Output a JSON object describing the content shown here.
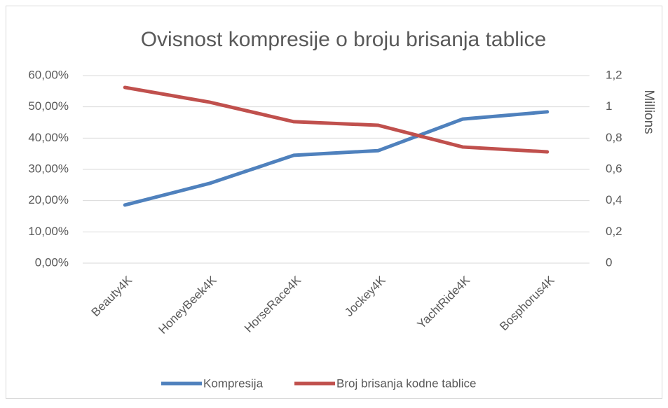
{
  "chart_data": {
    "type": "line",
    "title": "Ovisnost kompresije o broju brisanja tablice",
    "categories": [
      "Beauty4K",
      "HoneyBeek4K",
      "HorseRace4K",
      "Jockey4K",
      "YachtRide4K",
      "Bosphorus4K"
    ],
    "series": [
      {
        "name": "Kompresija",
        "color": "#4f81bd",
        "values": [
          18.6,
          25.5,
          34.5,
          36.0,
          46.1,
          48.4
        ]
      },
      {
        "name": "Broj brisanja kodne tablice",
        "color": "#c0504d",
        "axis": "y2",
        "values": [
          1.124,
          1.03,
          0.905,
          0.882,
          0.743,
          0.712
        ]
      }
    ],
    "ylim": [
      0,
      60
    ],
    "yticks": [
      {
        "value": 0,
        "label": "0,00%"
      },
      {
        "value": 10,
        "label": "10,00%"
      },
      {
        "value": 20,
        "label": "20,00%"
      },
      {
        "value": 30,
        "label": "30,00%"
      },
      {
        "value": 40,
        "label": "40,00%"
      },
      {
        "value": 50,
        "label": "50,00%"
      },
      {
        "value": 60,
        "label": "60,00%"
      }
    ],
    "y2lim": [
      0,
      1.2
    ],
    "y2ticks": [
      0,
      {
        "value": 0.2,
        "label": "0,2"
      },
      {
        "value": 0.4,
        "label": "0,4"
      },
      {
        "value": 0.6,
        "label": "0,6"
      },
      {
        "value": 0.8,
        "label": "0,8"
      },
      1,
      {
        "value": 1.2,
        "label": "1,2"
      }
    ],
    "y2label": "Millions",
    "grid": true,
    "legend": "bottom"
  }
}
